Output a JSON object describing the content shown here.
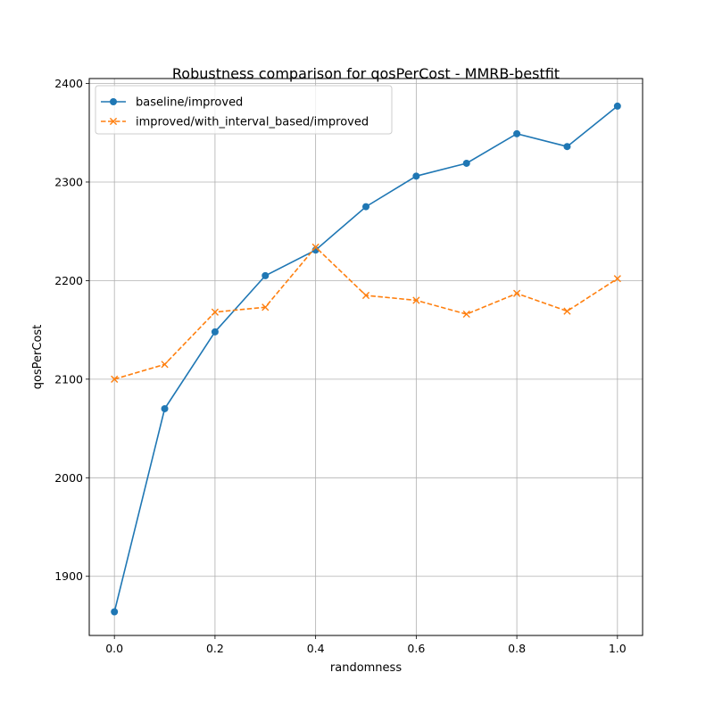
{
  "chart_data": {
    "type": "line",
    "title": "Robustness comparison for qosPerCost - MMRB-bestfit",
    "xlabel": "randomness",
    "ylabel": "qosPerCost",
    "xlim": [
      -0.05,
      1.05
    ],
    "ylim": [
      1840,
      2405
    ],
    "xticks": [
      "0.0",
      "0.2",
      "0.4",
      "0.6",
      "0.8",
      "1.0"
    ],
    "yticks": [
      "1900",
      "2000",
      "2100",
      "2200",
      "2300",
      "2400"
    ],
    "grid": true,
    "legend_position": "top-left",
    "x": [
      0.0,
      0.1,
      0.2,
      0.3,
      0.4,
      0.5,
      0.6,
      0.7,
      0.8,
      0.9,
      1.0
    ],
    "series": [
      {
        "name": "baseline/improved",
        "color": "#1f77b4",
        "marker": "circle",
        "linestyle": "solid",
        "values": [
          1864,
          2070,
          2148,
          2205,
          2231,
          2275,
          2306,
          2319,
          2349,
          2336,
          2377
        ]
      },
      {
        "name": "improved/with_interval_based/improved",
        "color": "#ff7f0e",
        "marker": "x",
        "linestyle": "dashed",
        "values": [
          2100,
          2115,
          2168,
          2173,
          2234,
          2185,
          2180,
          2166,
          2187,
          2169,
          2202
        ]
      }
    ]
  }
}
